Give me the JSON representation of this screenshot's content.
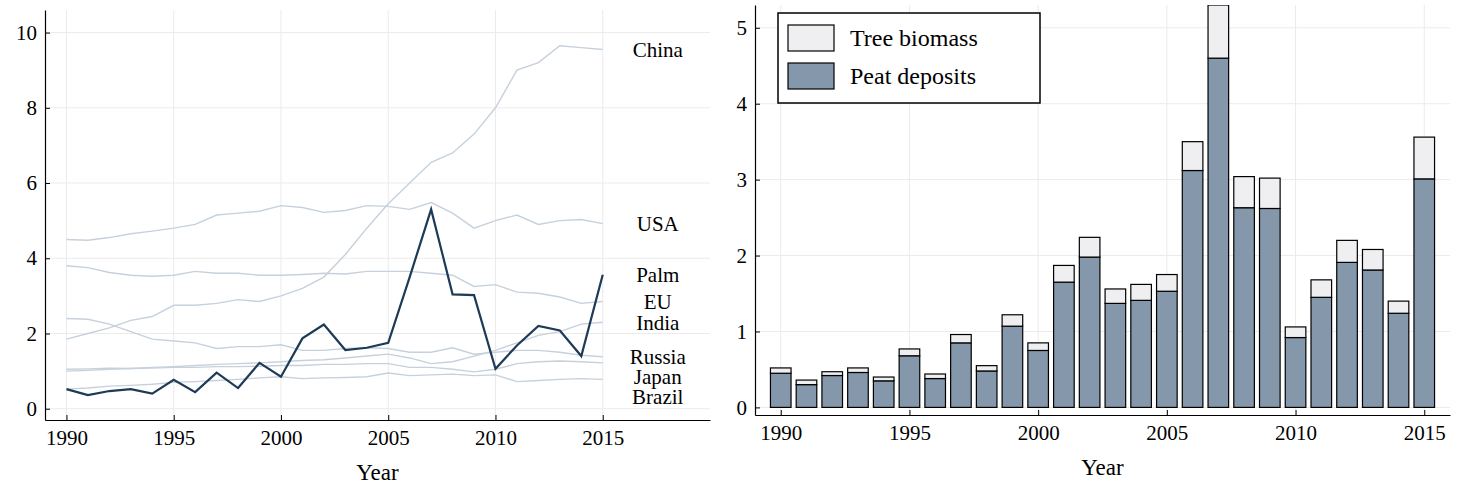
{
  "chart_data": [
    {
      "type": "line",
      "xlabel": "Year",
      "x": [
        1990,
        1991,
        1992,
        1993,
        1994,
        1995,
        1996,
        1997,
        1998,
        1999,
        2000,
        2001,
        2002,
        2003,
        2004,
        2005,
        2006,
        2007,
        2008,
        2009,
        2010,
        2011,
        2012,
        2013,
        2014,
        2015
      ],
      "xlim": [
        1989,
        2020
      ],
      "xticks": [
        1990,
        1995,
        2000,
        2005,
        2010,
        2015
      ],
      "ylim": [
        -0.3,
        10.6
      ],
      "yticks": [
        0,
        2,
        4,
        6,
        8,
        10
      ],
      "grid": true,
      "series": [
        {
          "name": "China",
          "color": "#c6d1dc",
          "values": [
            1.85,
            2.0,
            2.15,
            2.35,
            2.45,
            2.75,
            2.75,
            2.8,
            2.9,
            2.85,
            3.0,
            3.2,
            3.5,
            4.1,
            4.8,
            5.45,
            6.0,
            6.55,
            6.8,
            7.3,
            8.0,
            9.0,
            9.2,
            9.65,
            9.6,
            9.55
          ]
        },
        {
          "name": "USA",
          "color": "#c6d1dc",
          "values": [
            4.5,
            4.48,
            4.55,
            4.65,
            4.72,
            4.8,
            4.9,
            5.15,
            5.2,
            5.25,
            5.4,
            5.35,
            5.22,
            5.27,
            5.4,
            5.38,
            5.3,
            5.48,
            5.2,
            4.8,
            5.0,
            5.15,
            4.9,
            5.0,
            5.03,
            4.92
          ]
        },
        {
          "name": "Palm",
          "color": "#1d3a57",
          "values": [
            0.52,
            0.36,
            0.47,
            0.52,
            0.4,
            0.77,
            0.44,
            0.96,
            0.55,
            1.22,
            0.85,
            1.87,
            2.24,
            1.56,
            1.62,
            1.75,
            3.5,
            5.3,
            3.04,
            3.02,
            1.06,
            1.68,
            2.2,
            2.08,
            1.4,
            3.56
          ]
        },
        {
          "name": "EU",
          "color": "#c6d1dc",
          "values": [
            3.8,
            3.75,
            3.62,
            3.55,
            3.52,
            3.55,
            3.65,
            3.6,
            3.6,
            3.55,
            3.55,
            3.57,
            3.6,
            3.58,
            3.65,
            3.65,
            3.65,
            3.6,
            3.55,
            3.25,
            3.3,
            3.1,
            3.07,
            2.97,
            2.8,
            2.85
          ]
        },
        {
          "name": "India",
          "color": "#c6d1dc",
          "values": [
            1.0,
            1.02,
            1.05,
            1.07,
            1.1,
            1.12,
            1.15,
            1.18,
            1.2,
            1.22,
            1.25,
            1.28,
            1.3,
            1.35,
            1.4,
            1.45,
            1.35,
            1.2,
            1.25,
            1.4,
            1.55,
            1.75,
            1.95,
            2.05,
            2.25,
            2.3
          ]
        },
        {
          "name": "Russia",
          "color": "#c6d1dc",
          "values": [
            2.4,
            2.38,
            2.25,
            2.05,
            1.85,
            1.8,
            1.75,
            1.6,
            1.65,
            1.65,
            1.7,
            1.55,
            1.55,
            1.6,
            1.62,
            1.6,
            1.5,
            1.5,
            1.62,
            1.45,
            1.5,
            1.55,
            1.55,
            1.5,
            1.42,
            1.38
          ]
        },
        {
          "name": "Japan",
          "color": "#c6d1dc",
          "values": [
            1.05,
            1.06,
            1.08,
            1.07,
            1.08,
            1.1,
            1.1,
            1.12,
            1.12,
            1.13,
            1.15,
            1.15,
            1.18,
            1.18,
            1.2,
            1.2,
            1.1,
            1.1,
            1.05,
            0.98,
            1.05,
            1.2,
            1.25,
            1.27,
            1.25,
            1.22
          ]
        },
        {
          "name": "Brazil",
          "color": "#c6d1dc",
          "values": [
            0.52,
            0.55,
            0.6,
            0.62,
            0.65,
            0.7,
            0.72,
            0.75,
            0.78,
            0.82,
            0.85,
            0.8,
            0.82,
            0.83,
            0.85,
            0.95,
            0.88,
            0.9,
            0.92,
            0.88,
            0.9,
            0.72,
            0.75,
            0.78,
            0.8,
            0.78
          ]
        }
      ]
    },
    {
      "type": "bar",
      "stacked": true,
      "xlabel": "Year",
      "legend": "top-left",
      "grid": true,
      "x": [
        1990,
        1991,
        1992,
        1993,
        1994,
        1995,
        1996,
        1997,
        1998,
        1999,
        2000,
        2001,
        2002,
        2003,
        2004,
        2005,
        2006,
        2007,
        2008,
        2009,
        2010,
        2011,
        2012,
        2013,
        2014,
        2015
      ],
      "xlim": [
        1989,
        2016
      ],
      "xticks": [
        1990,
        1995,
        2000,
        2005,
        2010,
        2015
      ],
      "ylim": [
        -0.1,
        5.3
      ],
      "yticks": [
        0,
        1,
        2,
        3,
        4,
        5
      ],
      "series": [
        {
          "name": "Tree biomass",
          "color": "#efeff1",
          "values": [
            0.07,
            0.06,
            0.05,
            0.06,
            0.05,
            0.09,
            0.06,
            0.11,
            0.07,
            0.15,
            0.1,
            0.22,
            0.26,
            0.19,
            0.21,
            0.22,
            0.38,
            0.7,
            0.41,
            0.4,
            0.14,
            0.23,
            0.29,
            0.27,
            0.16,
            0.55
          ]
        },
        {
          "name": "Peat deposits",
          "color": "#8497ab",
          "values": [
            0.45,
            0.3,
            0.42,
            0.46,
            0.35,
            0.68,
            0.38,
            0.85,
            0.48,
            1.07,
            0.75,
            1.65,
            1.98,
            1.37,
            1.41,
            1.53,
            3.12,
            4.6,
            2.63,
            2.62,
            0.92,
            1.45,
            1.91,
            1.81,
            1.24,
            3.01
          ]
        }
      ]
    }
  ]
}
